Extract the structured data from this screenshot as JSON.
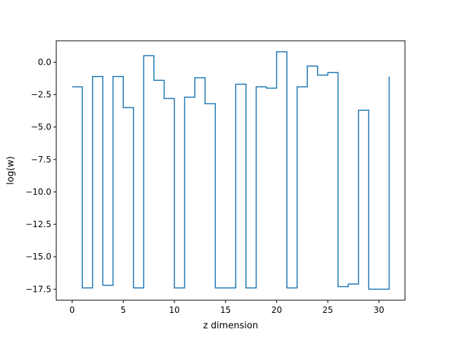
{
  "chart_data": {
    "type": "line",
    "step": "post",
    "xlabel": "z dimension",
    "ylabel": "log(w)",
    "xlim": [
      -1.55,
      32.55
    ],
    "ylim": [
      -18.35,
      1.65
    ],
    "xticks": [
      0,
      5,
      10,
      15,
      20,
      25,
      30
    ],
    "xtick_labels": [
      "0",
      "5",
      "10",
      "15",
      "20",
      "25",
      "30"
    ],
    "yticks": [
      0.0,
      -2.5,
      -5.0,
      -7.5,
      -10.0,
      -12.5,
      -15.0,
      -17.5
    ],
    "ytick_labels": [
      "0.0",
      "−2.5",
      "−5.0",
      "−7.5",
      "−10.0",
      "−12.5",
      "−15.0",
      "−17.5"
    ],
    "grid": false,
    "series": [
      {
        "color": "#1f77b4",
        "x": [
          0,
          1,
          2,
          3,
          4,
          5,
          6,
          7,
          8,
          9,
          10,
          11,
          12,
          13,
          14,
          15,
          16,
          17,
          18,
          19,
          20,
          21,
          22,
          23,
          24,
          25,
          26,
          27,
          28,
          29,
          30,
          31
        ],
        "values": [
          -1.9,
          -17.4,
          -1.1,
          -17.2,
          -1.1,
          -3.5,
          -17.4,
          0.5,
          -1.4,
          -2.8,
          -17.4,
          -2.7,
          -1.2,
          -3.2,
          -17.4,
          -17.4,
          -1.7,
          -17.4,
          -1.9,
          -2.0,
          0.8,
          -17.4,
          -1.9,
          -0.3,
          -1.0,
          -0.8,
          -17.3,
          -17.1,
          -3.7,
          -17.5,
          -17.5,
          -1.1
        ]
      }
    ]
  }
}
